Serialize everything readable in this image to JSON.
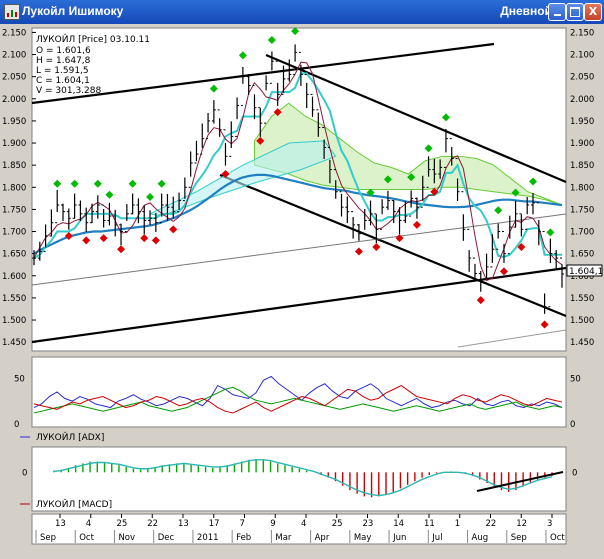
{
  "window": {
    "title": "Лукойл Ишимоку",
    "period": "Дневной",
    "buttons": {
      "minimize": "_",
      "maximize": "□",
      "close": "X"
    }
  },
  "colors": {
    "background": "#ffffff",
    "frame": "#d4d0c8",
    "price_bar": "#000000",
    "signal_up": "#00bb00",
    "signal_down": "#dd0000",
    "tenkan": "#8b1a3a",
    "kijun": "#9b1b9b",
    "cloud_green": "#66cc33",
    "cloud_cyan": "#33cccc",
    "ma_blue": "#1f7fc0",
    "adx_line": "#2b2bcc",
    "di_plus": "#009900",
    "di_minus": "#cc0000",
    "macd_line": "#2bb5b5",
    "macd_hist_pos": "#00aa00",
    "macd_hist_neg": "#cc0000"
  },
  "chart_data": [
    {
      "type": "line",
      "title": "ЛУКОЙЛ [Price] 03.10.11",
      "ohlc_readout": {
        "open": "O = 1.601,6",
        "high": "H = 1.647,8",
        "low": "L = 1.591,5",
        "close": "C = 1.604,1",
        "volume": "V = 301,3.288"
      },
      "last_price_label": "1.604,1",
      "ylim": [
        1430,
        2160
      ],
      "y_ticks": [
        "2.150",
        "2.100",
        "2.050",
        "2.000",
        "1.950",
        "1.900",
        "1.850",
        "1.800",
        "1.750",
        "1.700",
        "1.650",
        "1.600",
        "1.550",
        "1.500",
        "1.450"
      ],
      "x_tick_labels": [
        "13",
        "4",
        "25",
        "22",
        "13",
        "17",
        "7",
        "9",
        "4",
        "25",
        "23",
        "14",
        "11",
        "1",
        "22",
        "12",
        "3"
      ],
      "month_labels": [
        "Sep",
        "Oct",
        "Nov",
        "Dec",
        "2011",
        "Feb",
        "Mar",
        "Apr",
        "May",
        "Jun",
        "Jul",
        "Aug",
        "Sep",
        "Oct"
      ],
      "close_series": [
        1640,
        1655,
        1690,
        1720,
        1760,
        1745,
        1730,
        1760,
        1740,
        1720,
        1745,
        1760,
        1725,
        1735,
        1715,
        1700,
        1740,
        1760,
        1745,
        1725,
        1730,
        1720,
        1760,
        1755,
        1745,
        1770,
        1800,
        1855,
        1875,
        1910,
        1950,
        1975,
        1930,
        1870,
        1915,
        1985,
        2050,
        2030,
        1980,
        1945,
        2035,
        2085,
        2010,
        2045,
        2055,
        2105,
        2055,
        2010,
        1975,
        1935,
        1890,
        1840,
        1790,
        1755,
        1745,
        1715,
        1695,
        1725,
        1740,
        1705,
        1755,
        1770,
        1745,
        1725,
        1735,
        1775,
        1755,
        1800,
        1840,
        1830,
        1845,
        1910,
        1865,
        1790,
        1705,
        1640,
        1605,
        1585,
        1620,
        1660,
        1700,
        1650,
        1710,
        1740,
        1705,
        1760,
        1765,
        1700,
        1530,
        1650,
        1640,
        1604
      ],
      "ma_blue_series": [
        1650,
        1660,
        1668,
        1676,
        1684,
        1690,
        1694,
        1698,
        1700,
        1700,
        1702,
        1704,
        1706,
        1708,
        1710,
        1712,
        1715,
        1720,
        1726,
        1732,
        1740,
        1748,
        1758,
        1770,
        1782,
        1795,
        1806,
        1815,
        1822,
        1826,
        1828,
        1828,
        1826,
        1822,
        1818,
        1814,
        1810,
        1806,
        1802,
        1798,
        1796,
        1794,
        1792,
        1788,
        1785,
        1782,
        1780,
        1778,
        1775,
        1772,
        1768,
        1765,
        1762,
        1760,
        1758,
        1756,
        1755,
        1755,
        1756,
        1758,
        1762,
        1766,
        1770,
        1772,
        1772,
        1770,
        1768,
        1768,
        1766,
        1764,
        1762,
        1760
      ],
      "cloud_green_upper": [
        1905,
        1960,
        1990,
        1960,
        1940,
        1910,
        1880,
        1855,
        1845,
        1830,
        1860,
        1870,
        1870,
        1865,
        1850,
        1820,
        1790,
        1775,
        1760
      ],
      "cloud_green_lower": [
        1850,
        1840,
        1830,
        1815,
        1805,
        1800,
        1795,
        1795,
        1795,
        1795,
        1795,
        1800,
        1800,
        1795,
        1790,
        1785,
        1780,
        1772,
        1760
      ],
      "signals_up_approx": 38,
      "signals_down_approx": 32
    },
    {
      "type": "line",
      "title": "ЛУКОЙЛ [ADX]",
      "y_ticks": [
        "50",
        "0"
      ],
      "ylim": [
        0,
        70
      ],
      "series": [
        {
          "values": [
            18,
            22,
            30,
            35,
            28,
            25,
            30,
            27,
            22,
            20,
            18,
            25,
            28,
            32,
            27,
            24,
            20,
            22,
            26,
            30,
            28,
            24,
            20,
            28,
            42,
            38,
            32,
            30,
            28,
            34,
            48,
            52,
            44,
            38,
            32,
            26,
            34,
            40,
            44,
            36,
            30,
            28,
            36,
            40,
            44,
            38,
            28,
            24,
            20,
            24,
            28,
            22,
            18,
            20,
            24,
            26,
            22,
            20,
            28,
            22,
            20,
            24,
            26,
            20,
            18,
            22,
            20,
            24,
            22,
            18
          ]
        },
        {
          "values": [
            12,
            14,
            16,
            18,
            20,
            22,
            20,
            18,
            16,
            14,
            16,
            18,
            20,
            22,
            24,
            20,
            18,
            16,
            14,
            16,
            18,
            22,
            26,
            30,
            34,
            38,
            40,
            36,
            30,
            26,
            24,
            22,
            24,
            26,
            28,
            26,
            24,
            22,
            20,
            18,
            16,
            18,
            20,
            22,
            20,
            18,
            16,
            14,
            16,
            18,
            20,
            18,
            16,
            14,
            16,
            18,
            20,
            22,
            18,
            16,
            18,
            20,
            22,
            24,
            20,
            18,
            16,
            18,
            20,
            18
          ]
        },
        {
          "values": [
            22,
            20,
            18,
            16,
            20,
            24,
            22,
            26,
            28,
            30,
            26,
            22,
            18,
            20,
            24,
            26,
            30,
            28,
            24,
            20,
            22,
            26,
            28,
            24,
            18,
            14,
            12,
            16,
            20,
            24,
            18,
            14,
            18,
            22,
            26,
            30,
            28,
            24,
            20,
            26,
            32,
            38,
            36,
            30,
            26,
            28,
            34,
            38,
            42,
            36,
            30,
            28,
            26,
            24,
            22,
            28,
            32,
            30,
            26,
            24,
            28,
            32,
            30,
            26,
            22,
            20,
            24,
            28,
            26,
            24
          ]
        }
      ]
    },
    {
      "type": "bar",
      "title": "ЛУКОЙЛ [MACD]",
      "y_ticks": [
        "0"
      ],
      "ylim": [
        -40,
        25
      ],
      "macd_histogram": [
        2,
        3,
        5,
        8,
        10,
        12,
        12,
        11,
        10,
        8,
        6,
        4,
        3,
        4,
        6,
        8,
        9,
        10,
        10,
        9,
        8,
        6,
        5,
        6,
        8,
        10,
        12,
        14,
        15,
        14,
        12,
        10,
        8,
        6,
        4,
        2,
        0,
        -3,
        -6,
        -10,
        -15,
        -20,
        -24,
        -27,
        -28,
        -27,
        -25,
        -22,
        -18,
        -14,
        -10,
        -6,
        -3,
        -1,
        0,
        1,
        0,
        -2,
        -4,
        -8,
        -12,
        -16,
        -20,
        -22,
        -20,
        -16,
        -12,
        -8,
        -6,
        -4
      ],
      "signal_line": [
        1,
        2,
        4,
        6,
        8,
        10,
        11,
        11,
        10,
        9,
        7,
        5,
        4,
        4,
        5,
        7,
        8,
        9,
        10,
        9,
        8,
        7,
        6,
        6,
        7,
        9,
        11,
        13,
        14,
        14,
        13,
        11,
        9,
        7,
        5,
        3,
        1,
        -2,
        -5,
        -8,
        -12,
        -16,
        -20,
        -23,
        -25,
        -26,
        -25,
        -23,
        -20,
        -16,
        -12,
        -8,
        -5,
        -2,
        0,
        0,
        0,
        -1,
        -3,
        -6,
        -10,
        -14,
        -17,
        -19,
        -18,
        -15,
        -12,
        -9,
        -7,
        -5
      ]
    }
  ]
}
